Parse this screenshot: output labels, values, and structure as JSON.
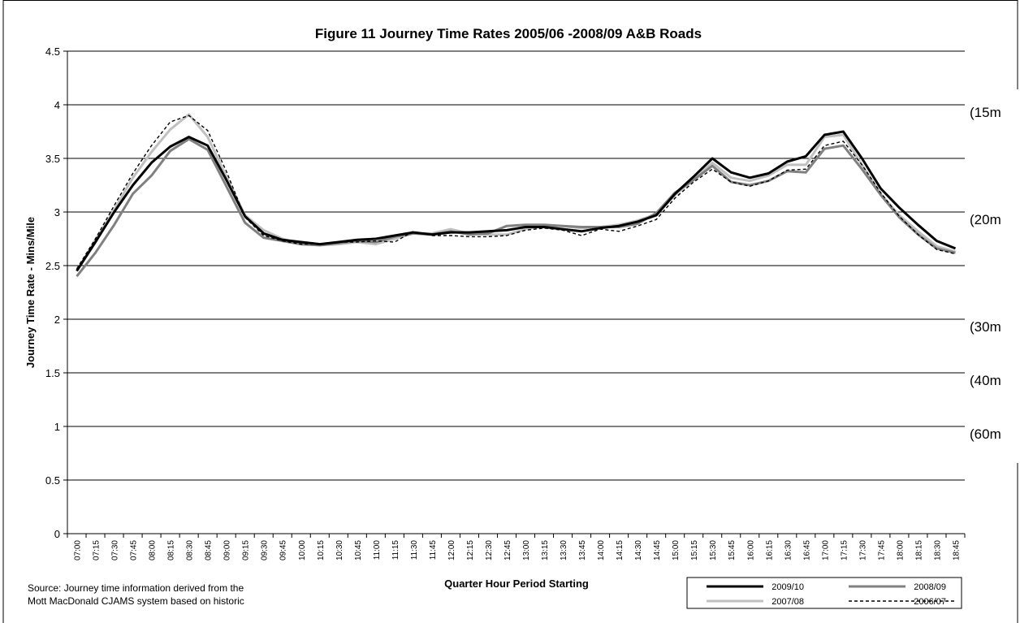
{
  "chart_data": {
    "type": "line",
    "title": "Figure 11 Journey Time Rates 2005/06 -2008/09 A&B Roads",
    "xlabel": "Quarter Hour Period Starting",
    "ylabel": "Journey Time Rate - Mins/Mile",
    "ylim": [
      0,
      4.5
    ],
    "y_ticks": [
      "0",
      "0.5",
      "1",
      "1.5",
      "2",
      "2.5",
      "3",
      "3.5",
      "4",
      "4.5"
    ],
    "right_axis_labels": [
      {
        "label": "(15m",
        "y": 4.0
      },
      {
        "label": "(20m",
        "y": 3.0
      },
      {
        "label": "(30m",
        "y": 2.0
      },
      {
        "label": "(40m",
        "y": 1.5
      },
      {
        "label": "(60m",
        "y": 1.0
      }
    ],
    "grid": "horizontal",
    "legend_position": "bottom-right",
    "categories": [
      "07:00",
      "07:15",
      "07:30",
      "07:45",
      "08:00",
      "08:15",
      "08:30",
      "08:45",
      "09:00",
      "09:15",
      "09:30",
      "09:45",
      "10:00",
      "10:15",
      "10:30",
      "10:45",
      "11:00",
      "11:15",
      "11:30",
      "11:45",
      "12:00",
      "12:15",
      "12:30",
      "12:45",
      "13:00",
      "13:15",
      "13:30",
      "13:45",
      "14:00",
      "14:15",
      "14:30",
      "14:45",
      "15:00",
      "15:15",
      "15:30",
      "15:45",
      "16:00",
      "16:15",
      "16:30",
      "16:45",
      "17:00",
      "17:15",
      "17:30",
      "17:45",
      "18:00",
      "18:15",
      "18:30",
      "18:45"
    ],
    "series": [
      {
        "name": "2009/10",
        "color": "#000000",
        "width": 3,
        "dash": "",
        "values": [
          2.45,
          2.72,
          3.0,
          3.25,
          3.46,
          3.61,
          3.7,
          3.62,
          3.3,
          2.96,
          2.8,
          2.74,
          2.72,
          2.7,
          2.72,
          2.74,
          2.75,
          2.78,
          2.81,
          2.79,
          2.81,
          2.81,
          2.82,
          2.83,
          2.86,
          2.86,
          2.84,
          2.82,
          2.85,
          2.87,
          2.91,
          2.97,
          3.17,
          3.33,
          3.5,
          3.37,
          3.32,
          3.36,
          3.47,
          3.52,
          3.72,
          3.75,
          3.5,
          3.22,
          3.04,
          2.88,
          2.73,
          2.66
        ]
      },
      {
        "name": "2008/09",
        "color": "#808080",
        "width": 3,
        "dash": "",
        "values": [
          2.4,
          2.62,
          2.88,
          3.17,
          3.34,
          3.57,
          3.68,
          3.58,
          3.24,
          2.9,
          2.76,
          2.73,
          2.7,
          2.69,
          2.71,
          2.73,
          2.72,
          2.77,
          2.8,
          2.79,
          2.82,
          2.79,
          2.8,
          2.87,
          2.88,
          2.88,
          2.87,
          2.86,
          2.86,
          2.86,
          2.89,
          2.99,
          3.18,
          3.3,
          3.43,
          3.28,
          3.25,
          3.29,
          3.38,
          3.37,
          3.59,
          3.62,
          3.4,
          3.16,
          2.95,
          2.79,
          2.66,
          2.62
        ]
      },
      {
        "name": "2007/08",
        "color": "#c0c0c0",
        "width": 3,
        "dash": "",
        "values": [
          2.45,
          2.74,
          3.02,
          3.32,
          3.56,
          3.77,
          3.91,
          3.7,
          3.33,
          2.97,
          2.83,
          2.75,
          2.7,
          2.69,
          2.7,
          2.72,
          2.7,
          2.75,
          2.8,
          2.8,
          2.84,
          2.8,
          2.79,
          2.79,
          2.84,
          2.87,
          2.87,
          2.85,
          2.86,
          2.88,
          2.92,
          2.98,
          3.16,
          3.3,
          3.46,
          3.32,
          3.29,
          3.34,
          3.44,
          3.44,
          3.7,
          3.72,
          3.44,
          3.17,
          2.97,
          2.82,
          2.68,
          2.63
        ]
      },
      {
        "name": "2006/07",
        "color": "#000000",
        "width": 1.4,
        "dash": "4,3",
        "values": [
          2.47,
          2.75,
          3.06,
          3.36,
          3.62,
          3.84,
          3.9,
          3.76,
          3.38,
          2.95,
          2.78,
          2.73,
          2.7,
          2.7,
          2.72,
          2.72,
          2.73,
          2.72,
          2.82,
          2.78,
          2.78,
          2.77,
          2.77,
          2.78,
          2.83,
          2.85,
          2.83,
          2.78,
          2.84,
          2.82,
          2.87,
          2.93,
          3.13,
          3.28,
          3.4,
          3.28,
          3.24,
          3.29,
          3.39,
          3.4,
          3.62,
          3.66,
          3.44,
          3.18,
          2.96,
          2.79,
          2.65,
          2.61
        ]
      }
    ]
  },
  "source_note": [
    "Source: Journey time information derived from the",
    "Mott MacDonald CJAMS system based on historic"
  ]
}
